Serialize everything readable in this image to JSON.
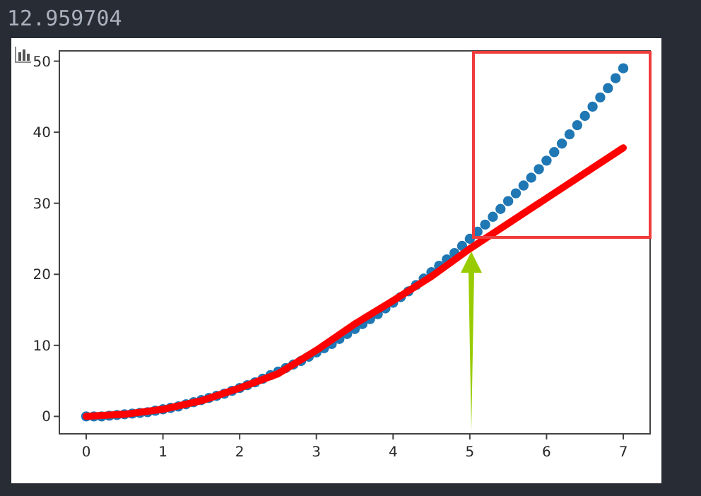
{
  "chart_data": {
    "type": "scatter",
    "annotations": [
      "12.959704"
    ],
    "series": [
      {
        "color": "#1f77b4",
        "marker": "circle",
        "x": [
          0,
          0.1,
          0.2,
          0.3,
          0.4,
          0.5,
          0.6,
          0.7,
          0.8,
          0.9,
          1,
          1.1,
          1.2,
          1.3,
          1.4,
          1.5,
          1.6,
          1.7,
          1.8,
          1.9,
          2,
          2.1,
          2.2,
          2.3,
          2.4,
          2.5,
          2.6,
          2.7,
          2.8,
          2.9,
          3,
          3.1,
          3.2,
          3.3,
          3.4,
          3.5,
          3.6,
          3.7,
          3.8,
          3.9,
          4,
          4.1,
          4.2,
          4.3,
          4.4,
          4.5,
          4.6,
          4.7,
          4.8,
          4.9,
          5,
          5.1,
          5.2,
          5.3,
          5.4,
          5.5,
          5.6,
          5.7,
          5.8,
          5.9,
          6,
          6.1,
          6.2,
          6.3,
          6.4,
          6.5,
          6.6,
          6.7,
          6.8,
          6.9,
          7
        ],
        "values": [
          0,
          0,
          0,
          0.1,
          0.2,
          0.3,
          0.4,
          0.5,
          0.6,
          0.8,
          1,
          1.2,
          1.4,
          1.7,
          2,
          2.3,
          2.6,
          2.9,
          3.2,
          3.6,
          4,
          4.4,
          4.8,
          5.3,
          5.8,
          6.3,
          6.8,
          7.3,
          7.8,
          8.4,
          9,
          9.6,
          10.2,
          10.9,
          11.6,
          12.3,
          13,
          13.7,
          14.4,
          15.2,
          16,
          16.8,
          17.6,
          18.5,
          19.4,
          20.3,
          21.2,
          22.1,
          23,
          24,
          25,
          26,
          27,
          28.1,
          29.2,
          30.3,
          31.4,
          32.5,
          33.6,
          34.8,
          36,
          37.2,
          38.4,
          39.7,
          41,
          42.3,
          43.6,
          44.9,
          46.2,
          47.6,
          49
        ]
      },
      {
        "type": "line",
        "color": "#ff0000",
        "x": [
          0,
          0.5,
          1,
          1.5,
          2,
          2.5,
          3,
          3.5,
          4,
          4.5,
          5,
          6,
          7
        ],
        "values": [
          0,
          0.3,
          1,
          2.2,
          4,
          6,
          9.3,
          13,
          16.3,
          19.7,
          23.6,
          30.7,
          37.8
        ]
      }
    ],
    "xlim": [
      -0.35,
      7.35
    ],
    "ylim": [
      -2.45,
      51.45
    ],
    "xticks": [
      0,
      1,
      2,
      3,
      4,
      5,
      6,
      7
    ],
    "yticks": [
      0,
      10,
      20,
      30,
      40,
      50
    ],
    "grid": false
  }
}
